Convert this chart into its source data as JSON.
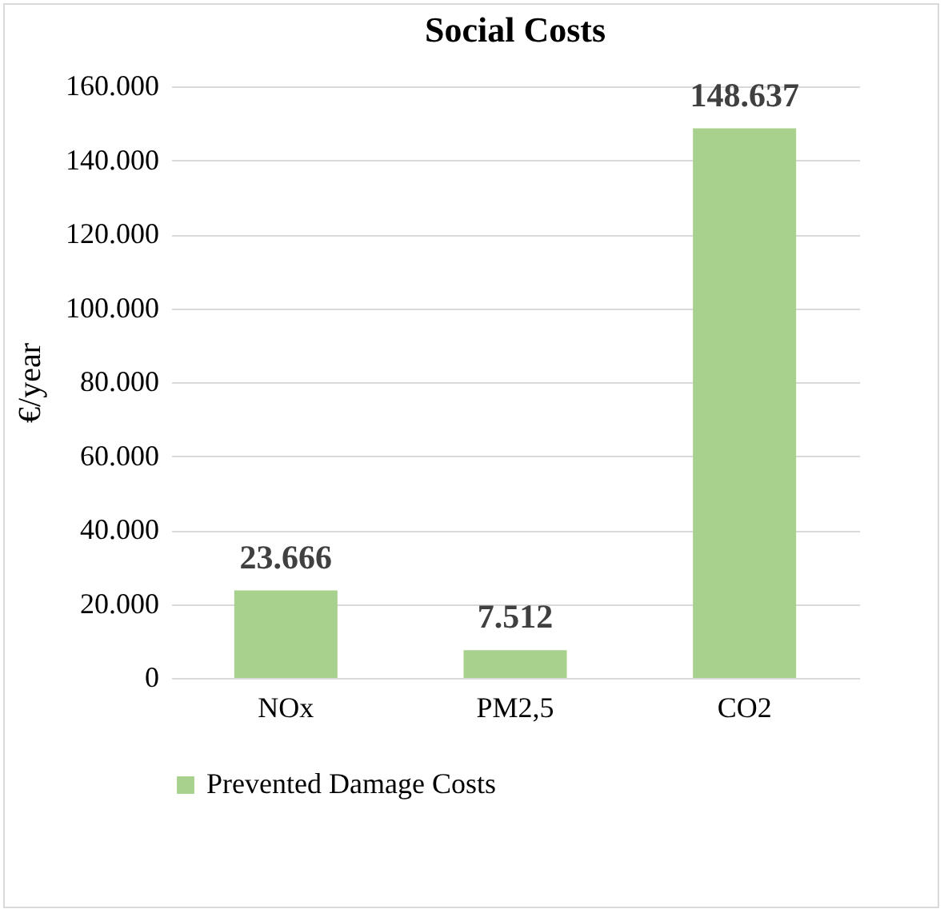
{
  "chart_data": {
    "type": "bar",
    "title": "Social Costs",
    "ylabel": "€/year",
    "categories": [
      "NOx",
      "PM2,5",
      "CO2"
    ],
    "series": [
      {
        "name": "Prevented Damage Costs",
        "color": "#a9d18e",
        "values": [
          23666,
          7512,
          148637
        ],
        "value_labels": [
          "23.666",
          "7.512",
          "148.637"
        ]
      }
    ],
    "ylim": [
      0,
      160000
    ],
    "yticks": [
      0,
      {
        "value": 20000,
        "label": "20.000"
      },
      {
        "value": 40000,
        "label": "40.000"
      },
      {
        "value": 60000,
        "label": "60.000"
      },
      {
        "value": 80000,
        "label": "80.000"
      },
      {
        "value": 100000,
        "label": "100.000"
      },
      {
        "value": 120000,
        "label": "120.000"
      },
      {
        "value": 140000,
        "label": "140.000"
      },
      {
        "value": 160000,
        "label": "160.000"
      }
    ],
    "grid": "y",
    "legend": "bottom"
  }
}
